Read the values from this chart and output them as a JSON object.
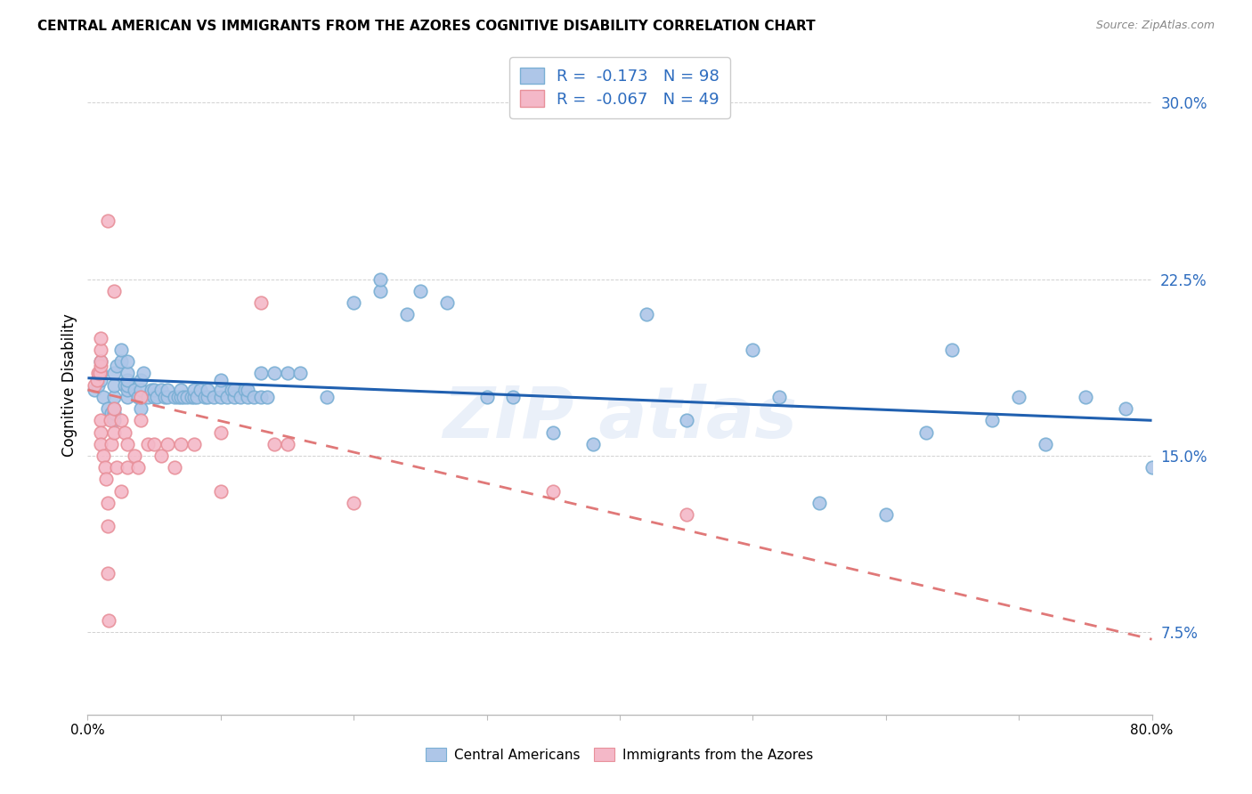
{
  "title": "CENTRAL AMERICAN VS IMMIGRANTS FROM THE AZORES COGNITIVE DISABILITY CORRELATION CHART",
  "source": "Source: ZipAtlas.com",
  "ylabel": "Cognitive Disability",
  "xlim": [
    0.0,
    0.8
  ],
  "ylim": [
    0.04,
    0.32
  ],
  "yticks": [
    0.075,
    0.15,
    0.225,
    0.3
  ],
  "ytick_labels": [
    "7.5%",
    "15.0%",
    "22.5%",
    "30.0%"
  ],
  "xticks": [
    0.0,
    0.1,
    0.2,
    0.3,
    0.4,
    0.5,
    0.6,
    0.7,
    0.8
  ],
  "xtick_labels": [
    "0.0%",
    "",
    "",
    "",
    "",
    "",
    "",
    "",
    "80.0%"
  ],
  "blue_R": -0.173,
  "blue_N": 98,
  "pink_R": -0.067,
  "pink_N": 49,
  "blue_face_color": "#aec6e8",
  "pink_face_color": "#f4b8c8",
  "blue_edge_color": "#7aafd4",
  "pink_edge_color": "#e8909a",
  "blue_line_color": "#2060b0",
  "pink_line_color": "#e07878",
  "watermark": "ZIP atlas",
  "blue_scatter_x": [
    0.005,
    0.008,
    0.01,
    0.01,
    0.01,
    0.012,
    0.015,
    0.018,
    0.02,
    0.02,
    0.02,
    0.02,
    0.02,
    0.02,
    0.022,
    0.025,
    0.025,
    0.028,
    0.03,
    0.03,
    0.03,
    0.03,
    0.03,
    0.03,
    0.035,
    0.038,
    0.04,
    0.04,
    0.04,
    0.04,
    0.042,
    0.045,
    0.048,
    0.05,
    0.05,
    0.052,
    0.055,
    0.058,
    0.06,
    0.06,
    0.065,
    0.068,
    0.07,
    0.07,
    0.072,
    0.075,
    0.078,
    0.08,
    0.08,
    0.082,
    0.085,
    0.088,
    0.09,
    0.09,
    0.095,
    0.1,
    0.1,
    0.1,
    0.105,
    0.108,
    0.11,
    0.11,
    0.115,
    0.118,
    0.12,
    0.12,
    0.125,
    0.13,
    0.13,
    0.135,
    0.14,
    0.15,
    0.16,
    0.18,
    0.2,
    0.22,
    0.22,
    0.24,
    0.25,
    0.27,
    0.3,
    0.32,
    0.35,
    0.38,
    0.42,
    0.45,
    0.5,
    0.52,
    0.55,
    0.6,
    0.63,
    0.65,
    0.68,
    0.7,
    0.72,
    0.75,
    0.78,
    0.8
  ],
  "blue_scatter_y": [
    0.178,
    0.18,
    0.182,
    0.185,
    0.19,
    0.175,
    0.17,
    0.168,
    0.165,
    0.168,
    0.17,
    0.175,
    0.18,
    0.185,
    0.188,
    0.19,
    0.195,
    0.18,
    0.175,
    0.178,
    0.18,
    0.182,
    0.185,
    0.19,
    0.178,
    0.175,
    0.17,
    0.175,
    0.178,
    0.182,
    0.185,
    0.175,
    0.178,
    0.175,
    0.178,
    0.175,
    0.178,
    0.175,
    0.175,
    0.178,
    0.175,
    0.175,
    0.175,
    0.178,
    0.175,
    0.175,
    0.175,
    0.175,
    0.178,
    0.175,
    0.178,
    0.175,
    0.175,
    0.178,
    0.175,
    0.175,
    0.178,
    0.182,
    0.175,
    0.178,
    0.175,
    0.178,
    0.175,
    0.178,
    0.175,
    0.178,
    0.175,
    0.175,
    0.185,
    0.175,
    0.185,
    0.185,
    0.185,
    0.175,
    0.215,
    0.22,
    0.225,
    0.21,
    0.22,
    0.215,
    0.175,
    0.175,
    0.16,
    0.155,
    0.21,
    0.165,
    0.195,
    0.175,
    0.13,
    0.125,
    0.16,
    0.195,
    0.165,
    0.175,
    0.155,
    0.175,
    0.17,
    0.145
  ],
  "pink_scatter_x": [
    0.005,
    0.007,
    0.008,
    0.009,
    0.01,
    0.01,
    0.01,
    0.01,
    0.01,
    0.01,
    0.01,
    0.012,
    0.013,
    0.014,
    0.015,
    0.015,
    0.015,
    0.016,
    0.017,
    0.018,
    0.02,
    0.02,
    0.022,
    0.025,
    0.025,
    0.028,
    0.03,
    0.03,
    0.035,
    0.038,
    0.04,
    0.04,
    0.045,
    0.05,
    0.055,
    0.06,
    0.065,
    0.07,
    0.08,
    0.1,
    0.1,
    0.13,
    0.14,
    0.15,
    0.2,
    0.35,
    0.45,
    0.02,
    0.015
  ],
  "pink_scatter_y": [
    0.18,
    0.182,
    0.185,
    0.185,
    0.188,
    0.19,
    0.195,
    0.2,
    0.165,
    0.16,
    0.155,
    0.15,
    0.145,
    0.14,
    0.13,
    0.12,
    0.1,
    0.08,
    0.165,
    0.155,
    0.17,
    0.16,
    0.145,
    0.135,
    0.165,
    0.16,
    0.155,
    0.145,
    0.15,
    0.145,
    0.175,
    0.165,
    0.155,
    0.155,
    0.15,
    0.155,
    0.145,
    0.155,
    0.155,
    0.16,
    0.135,
    0.215,
    0.155,
    0.155,
    0.13,
    0.135,
    0.125,
    0.22,
    0.25
  ],
  "blue_trendline_x": [
    0.0,
    0.8
  ],
  "blue_trendline_y": [
    0.183,
    0.165
  ],
  "pink_trendline_x": [
    0.0,
    0.8
  ],
  "pink_trendline_y": [
    0.178,
    0.072
  ],
  "legend_blue_label": "Central Americans",
  "legend_pink_label": "Immigrants from the Azores"
}
